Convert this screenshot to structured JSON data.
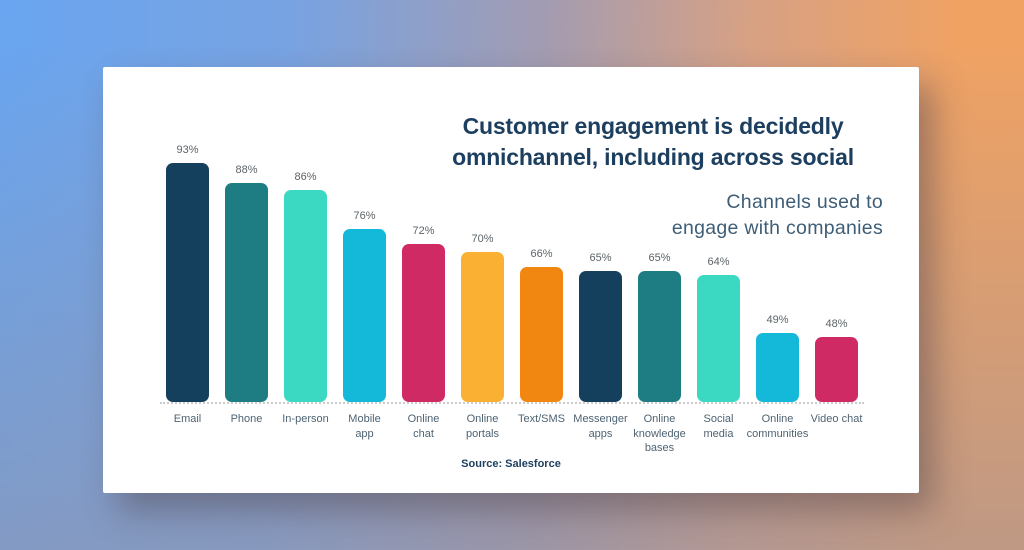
{
  "page_background": {
    "top_left_color": "#69a5f0",
    "top_right_color": "#f0a263",
    "bottom_fade_color": "#a5a0af"
  },
  "card": {
    "background_color": "#ffffff",
    "title": "Customer engagement is decidedly\nomnichannel, including across social",
    "subtitle": "Channels used to\nengage with companies",
    "source": "Source: Salesforce",
    "title_color": "#1c3e5f",
    "subtitle_color": "#3e5d76"
  },
  "chart_data": {
    "type": "bar",
    "title": "Customer engagement is decidedly omnichannel, including across social",
    "subtitle": "Channels used to engage with companies",
    "source": "Salesforce",
    "categories": [
      "Email",
      "Phone",
      "In-person",
      "Mobile app",
      "Online chat",
      "Online portals",
      "Text/SMS",
      "Messenger apps",
      "Online knowledge bases",
      "Social media",
      "Online communities",
      "Video chat"
    ],
    "categories_display": [
      "Email",
      "Phone",
      "In-person",
      "Mobile\napp",
      "Online\nchat",
      "Online\nportals",
      "Text/SMS",
      "Messenger\napps",
      "Online\nknowledge\nbases",
      "Social\nmedia",
      "Online\ncommunities",
      "Video chat"
    ],
    "values": [
      93,
      88,
      86,
      76,
      72,
      70,
      66,
      65,
      65,
      64,
      49,
      48
    ],
    "value_suffix": "%",
    "bar_colors": [
      "#14405e",
      "#1e7c83",
      "#3bd8c2",
      "#14b9d9",
      "#d02a65",
      "#f9b033",
      "#f18711",
      "#14405e",
      "#1e7c83",
      "#3bd8c2",
      "#14b9d9",
      "#d02a65"
    ],
    "value_label_color": "#5c6468",
    "category_label_color": "#4e6373",
    "ylim": [
      0,
      100
    ],
    "grid": false,
    "legend": false,
    "baseline_style": "dotted",
    "bar_corner_radius": "rounded"
  }
}
